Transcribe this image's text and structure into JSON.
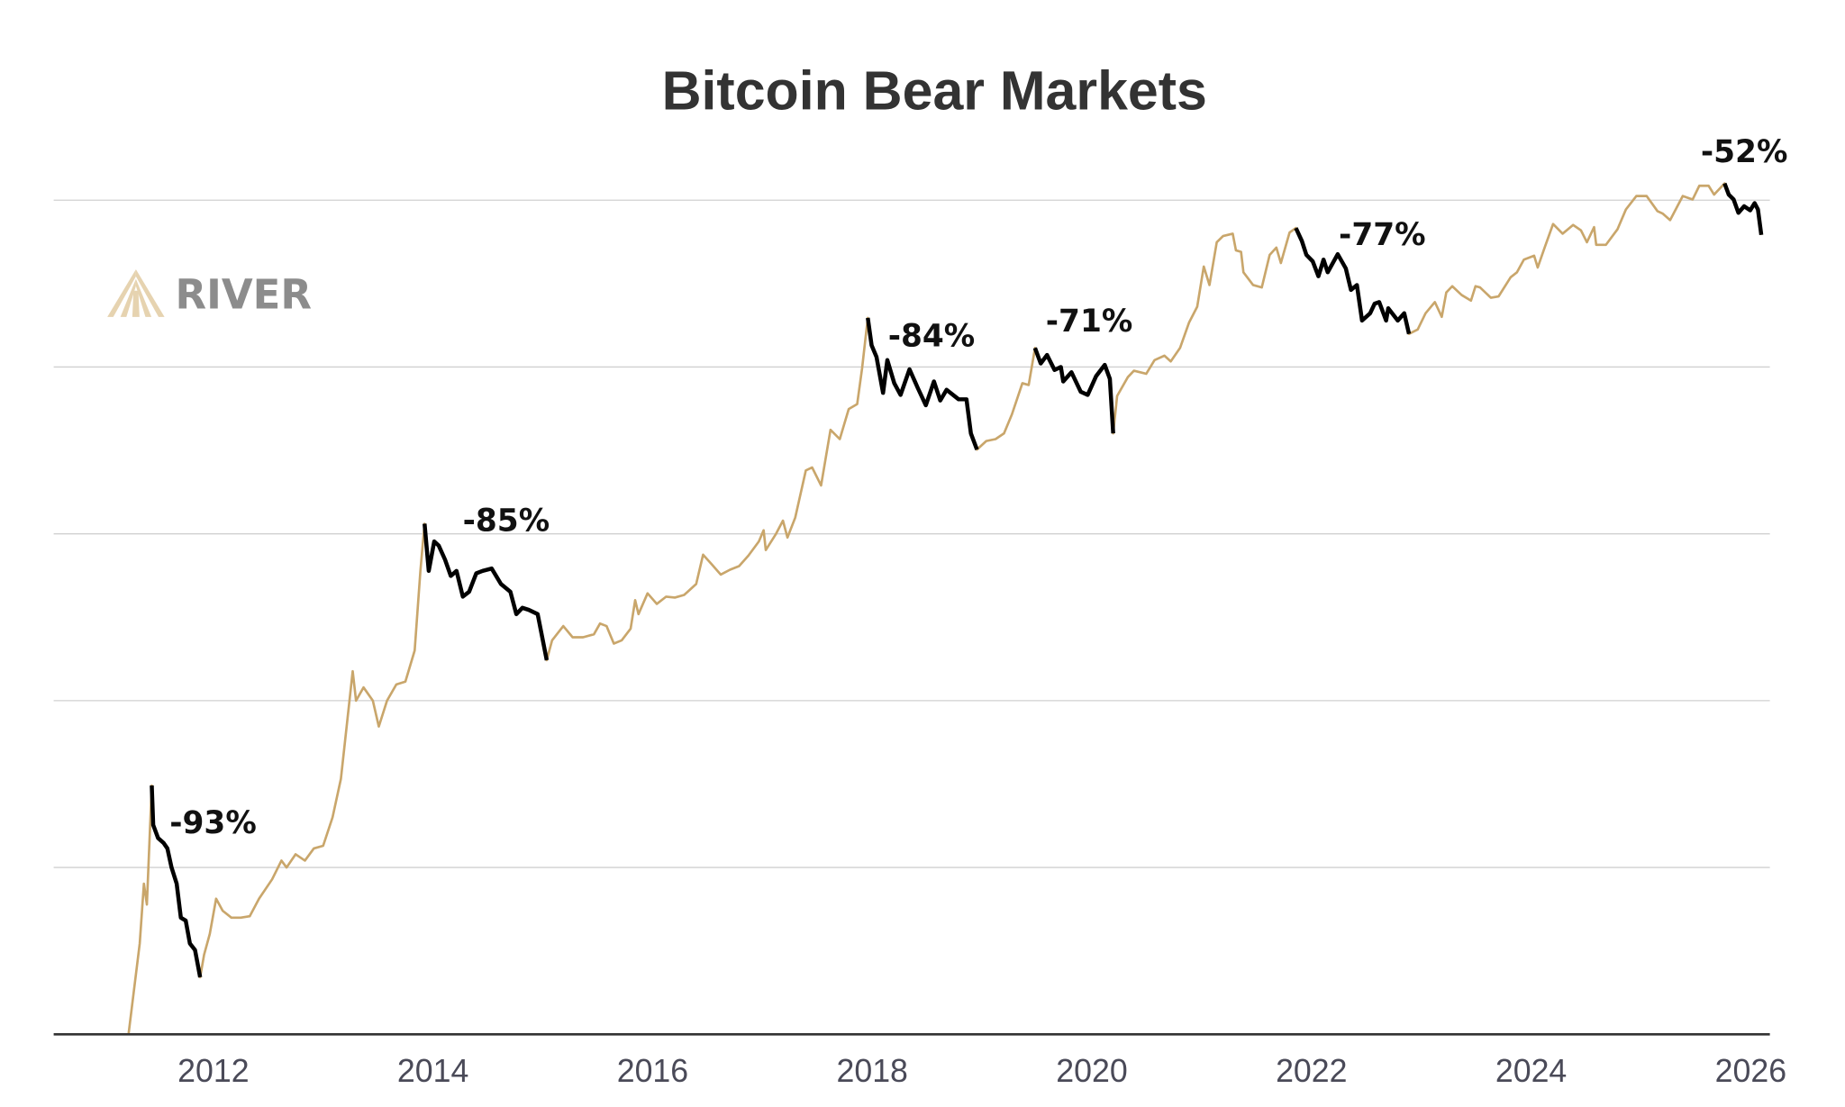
{
  "chart_data": {
    "type": "line",
    "title": "Bitcoin Bear Markets",
    "xlabel": "",
    "ylabel": "",
    "y_scale": "log",
    "y_gridlines": [
      1,
      10,
      100,
      1000,
      10000,
      100000
    ],
    "y_tick_labels_shown": false,
    "xlim": [
      "2011-01-01",
      "2026-03-01"
    ],
    "x_ticks": [
      "2012",
      "2014",
      "2016",
      "2018",
      "2020",
      "2022",
      "2024",
      "2026"
    ],
    "grid": "horizontal",
    "colors": {
      "price": "#C9A66B",
      "bear_market": "#000000",
      "gridline": "#d0d0d0",
      "axis": "#333333"
    },
    "logo": "RIVER",
    "series": [
      {
        "values": [
          [
            "2011-03-25",
            1.0
          ],
          [
            "2011-05-01",
            3.5
          ],
          [
            "2011-05-15",
            8
          ],
          [
            "2011-05-25",
            6
          ],
          [
            "2011-06-10",
            31
          ],
          [
            "2011-06-15",
            18
          ],
          [
            "2011-07-01",
            15
          ],
          [
            "2011-07-20",
            14
          ],
          [
            "2011-08-01",
            13
          ],
          [
            "2011-08-15",
            10
          ],
          [
            "2011-09-01",
            8
          ],
          [
            "2011-09-15",
            5
          ],
          [
            "2011-10-01",
            4.8
          ],
          [
            "2011-10-15",
            3.5
          ],
          [
            "2011-11-01",
            3.2
          ],
          [
            "2011-11-18",
            2.2
          ],
          [
            "2011-12-01",
            3
          ],
          [
            "2011-12-20",
            4
          ],
          [
            "2012-01-10",
            6.5
          ],
          [
            "2012-02-01",
            5.5
          ],
          [
            "2012-03-01",
            5
          ],
          [
            "2012-04-01",
            5
          ],
          [
            "2012-05-01",
            5.1
          ],
          [
            "2012-06-01",
            6.5
          ],
          [
            "2012-07-15",
            8.5
          ],
          [
            "2012-08-15",
            11
          ],
          [
            "2012-09-01",
            10
          ],
          [
            "2012-10-01",
            12
          ],
          [
            "2012-11-01",
            11
          ],
          [
            "2012-12-01",
            13
          ],
          [
            "2013-01-01",
            13.5
          ],
          [
            "2013-02-01",
            20
          ],
          [
            "2013-03-01",
            34
          ],
          [
            "2013-04-09",
            150
          ],
          [
            "2013-04-20",
            100
          ],
          [
            "2013-05-15",
            120
          ],
          [
            "2013-06-15",
            100
          ],
          [
            "2013-07-05",
            70
          ],
          [
            "2013-08-01",
            100
          ],
          [
            "2013-09-01",
            125
          ],
          [
            "2013-10-01",
            130
          ],
          [
            "2013-11-01",
            200
          ],
          [
            "2013-11-20",
            600
          ],
          [
            "2013-12-04",
            1150
          ],
          [
            "2013-12-18",
            600
          ],
          [
            "2014-01-05",
            900
          ],
          [
            "2014-01-20",
            850
          ],
          [
            "2014-02-10",
            700
          ],
          [
            "2014-03-01",
            560
          ],
          [
            "2014-03-20",
            600
          ],
          [
            "2014-04-10",
            420
          ],
          [
            "2014-05-01",
            450
          ],
          [
            "2014-05-25",
            580
          ],
          [
            "2014-06-15",
            600
          ],
          [
            "2014-07-15",
            620
          ],
          [
            "2014-08-15",
            500
          ],
          [
            "2014-09-15",
            450
          ],
          [
            "2014-10-05",
            330
          ],
          [
            "2014-10-25",
            360
          ],
          [
            "2014-11-15",
            350
          ],
          [
            "2014-12-15",
            330
          ],
          [
            "2015-01-14",
            175
          ],
          [
            "2015-02-01",
            230
          ],
          [
            "2015-03-10",
            280
          ],
          [
            "2015-04-10",
            240
          ],
          [
            "2015-05-15",
            240
          ],
          [
            "2015-06-20",
            250
          ],
          [
            "2015-07-10",
            290
          ],
          [
            "2015-08-01",
            280
          ],
          [
            "2015-08-25",
            220
          ],
          [
            "2015-09-20",
            230
          ],
          [
            "2015-10-20",
            270
          ],
          [
            "2015-11-04",
            400
          ],
          [
            "2015-11-15",
            330
          ],
          [
            "2015-12-15",
            440
          ],
          [
            "2016-01-15",
            380
          ],
          [
            "2016-02-15",
            420
          ],
          [
            "2016-03-15",
            415
          ],
          [
            "2016-04-15",
            430
          ],
          [
            "2016-05-25",
            500
          ],
          [
            "2016-06-17",
            750
          ],
          [
            "2016-07-15",
            660
          ],
          [
            "2016-08-15",
            570
          ],
          [
            "2016-09-15",
            610
          ],
          [
            "2016-10-15",
            640
          ],
          [
            "2016-11-15",
            740
          ],
          [
            "2016-12-20",
            900
          ],
          [
            "2017-01-05",
            1050
          ],
          [
            "2017-01-12",
            800
          ],
          [
            "2017-02-15",
            1000
          ],
          [
            "2017-03-10",
            1200
          ],
          [
            "2017-03-25",
            950
          ],
          [
            "2017-04-20",
            1250
          ],
          [
            "2017-05-25",
            2400
          ],
          [
            "2017-06-15",
            2500
          ],
          [
            "2017-07-15",
            1950
          ],
          [
            "2017-08-15",
            4200
          ],
          [
            "2017-09-15",
            3700
          ],
          [
            "2017-10-15",
            5600
          ],
          [
            "2017-11-12",
            6000
          ],
          [
            "2017-11-28",
            9800
          ],
          [
            "2017-12-17",
            19700
          ],
          [
            "2017-12-30",
            13500
          ],
          [
            "2018-01-15",
            11500
          ],
          [
            "2018-02-06",
            7000
          ],
          [
            "2018-02-20",
            11000
          ],
          [
            "2018-03-15",
            8000
          ],
          [
            "2018-04-05",
            6800
          ],
          [
            "2018-05-05",
            9700
          ],
          [
            "2018-06-01",
            7500
          ],
          [
            "2018-06-28",
            5900
          ],
          [
            "2018-07-25",
            8200
          ],
          [
            "2018-08-15",
            6300
          ],
          [
            "2018-09-05",
            7300
          ],
          [
            "2018-10-15",
            6400
          ],
          [
            "2018-11-10",
            6400
          ],
          [
            "2018-11-25",
            4000
          ],
          [
            "2018-12-15",
            3200
          ],
          [
            "2019-01-15",
            3600
          ],
          [
            "2019-02-15",
            3700
          ],
          [
            "2019-03-15",
            4000
          ],
          [
            "2019-04-10",
            5200
          ],
          [
            "2019-05-15",
            8000
          ],
          [
            "2019-06-05",
            7800
          ],
          [
            "2019-06-26",
            13000
          ],
          [
            "2019-07-15",
            10500
          ],
          [
            "2019-08-05",
            11800
          ],
          [
            "2019-08-30",
            9600
          ],
          [
            "2019-09-20",
            10000
          ],
          [
            "2019-09-28",
            8200
          ],
          [
            "2019-10-25",
            9300
          ],
          [
            "2019-11-25",
            7100
          ],
          [
            "2019-12-18",
            6800
          ],
          [
            "2020-01-15",
            8800
          ],
          [
            "2020-02-13",
            10300
          ],
          [
            "2020-03-01",
            8500
          ],
          [
            "2020-03-12",
            4000
          ],
          [
            "2020-03-25",
            6700
          ],
          [
            "2020-04-30",
            8700
          ],
          [
            "2020-05-20",
            9500
          ],
          [
            "2020-06-30",
            9100
          ],
          [
            "2020-07-28",
            11000
          ],
          [
            "2020-08-30",
            11700
          ],
          [
            "2020-09-20",
            10800
          ],
          [
            "2020-10-21",
            13000
          ],
          [
            "2020-11-20",
            18500
          ],
          [
            "2020-12-17",
            23000
          ],
          [
            "2021-01-08",
            40000
          ],
          [
            "2021-01-27",
            31000
          ],
          [
            "2021-02-20",
            56000
          ],
          [
            "2021-03-13",
            61000
          ],
          [
            "2021-04-14",
            63000
          ],
          [
            "2021-04-25",
            50000
          ],
          [
            "2021-05-12",
            49000
          ],
          [
            "2021-05-20",
            37000
          ],
          [
            "2021-06-21",
            31000
          ],
          [
            "2021-07-20",
            30000
          ],
          [
            "2021-08-15",
            47000
          ],
          [
            "2021-09-06",
            52000
          ],
          [
            "2021-09-21",
            42000
          ],
          [
            "2021-10-20",
            64000
          ],
          [
            "2021-11-10",
            68000
          ],
          [
            "2021-11-30",
            57000
          ],
          [
            "2021-12-15",
            47000
          ],
          [
            "2022-01-05",
            43000
          ],
          [
            "2022-01-24",
            35000
          ],
          [
            "2022-02-10",
            44000
          ],
          [
            "2022-02-24",
            37000
          ],
          [
            "2022-03-29",
            47500
          ],
          [
            "2022-04-25",
            39000
          ],
          [
            "2022-05-12",
            29000
          ],
          [
            "2022-06-01",
            31000
          ],
          [
            "2022-06-18",
            19000
          ],
          [
            "2022-07-15",
            21000
          ],
          [
            "2022-07-30",
            24000
          ],
          [
            "2022-08-14",
            24500
          ],
          [
            "2022-09-06",
            19000
          ],
          [
            "2022-09-13",
            22500
          ],
          [
            "2022-10-15",
            19000
          ],
          [
            "2022-11-05",
            21000
          ],
          [
            "2022-11-21",
            15800
          ],
          [
            "2022-12-20",
            16800
          ],
          [
            "2023-01-15",
            21000
          ],
          [
            "2023-02-15",
            24500
          ],
          [
            "2023-03-10",
            20000
          ],
          [
            "2023-03-25",
            28000
          ],
          [
            "2023-04-14",
            30500
          ],
          [
            "2023-05-15",
            27000
          ],
          [
            "2023-06-15",
            25000
          ],
          [
            "2023-06-30",
            30500
          ],
          [
            "2023-07-15",
            30000
          ],
          [
            "2023-08-20",
            26000
          ],
          [
            "2023-09-15",
            26500
          ],
          [
            "2023-10-25",
            34500
          ],
          [
            "2023-11-15",
            37000
          ],
          [
            "2023-12-08",
            44000
          ],
          [
            "2024-01-11",
            46500
          ],
          [
            "2024-01-23",
            39500
          ],
          [
            "2024-02-15",
            52000
          ],
          [
            "2024-03-14",
            72000
          ],
          [
            "2024-04-15",
            63000
          ],
          [
            "2024-05-20",
            71000
          ],
          [
            "2024-06-15",
            66000
          ],
          [
            "2024-07-05",
            56000
          ],
          [
            "2024-07-29",
            69000
          ],
          [
            "2024-08-05",
            54000
          ],
          [
            "2024-09-06",
            54000
          ],
          [
            "2024-10-15",
            67000
          ],
          [
            "2024-11-12",
            88000
          ],
          [
            "2024-12-17",
            106000
          ],
          [
            "2025-01-20",
            106000
          ],
          [
            "2025-02-25",
            86000
          ],
          [
            "2025-03-15",
            83000
          ],
          [
            "2025-04-08",
            76000
          ],
          [
            "2025-05-20",
            106000
          ],
          [
            "2025-06-22",
            101000
          ],
          [
            "2025-07-14",
            122000
          ],
          [
            "2025-08-14",
            122000
          ],
          [
            "2025-09-01",
            108000
          ],
          [
            "2025-10-06",
            126000
          ],
          [
            "2025-10-20",
            108000
          ],
          [
            "2025-11-05",
            101000
          ],
          [
            "2025-11-21",
            84000
          ],
          [
            "2025-12-10",
            92000
          ],
          [
            "2025-12-30",
            87000
          ],
          [
            "2026-01-14",
            96000
          ],
          [
            "2026-01-25",
            88000
          ],
          [
            "2026-02-05",
            62000
          ]
        ]
      }
    ],
    "bear_markets": [
      {
        "start": "2011-06-10",
        "end": "2011-11-18",
        "label": "-93%"
      },
      {
        "start": "2013-12-04",
        "end": "2015-01-14",
        "label": "-85%"
      },
      {
        "start": "2017-12-17",
        "end": "2018-12-15",
        "label": "-84%"
      },
      {
        "start": "2019-06-26",
        "end": "2020-03-12",
        "label": "-71%"
      },
      {
        "start": "2021-11-10",
        "end": "2022-11-21",
        "label": "-77%"
      },
      {
        "start": "2025-10-06",
        "end": "2026-02-05",
        "label": "-52%"
      }
    ]
  }
}
